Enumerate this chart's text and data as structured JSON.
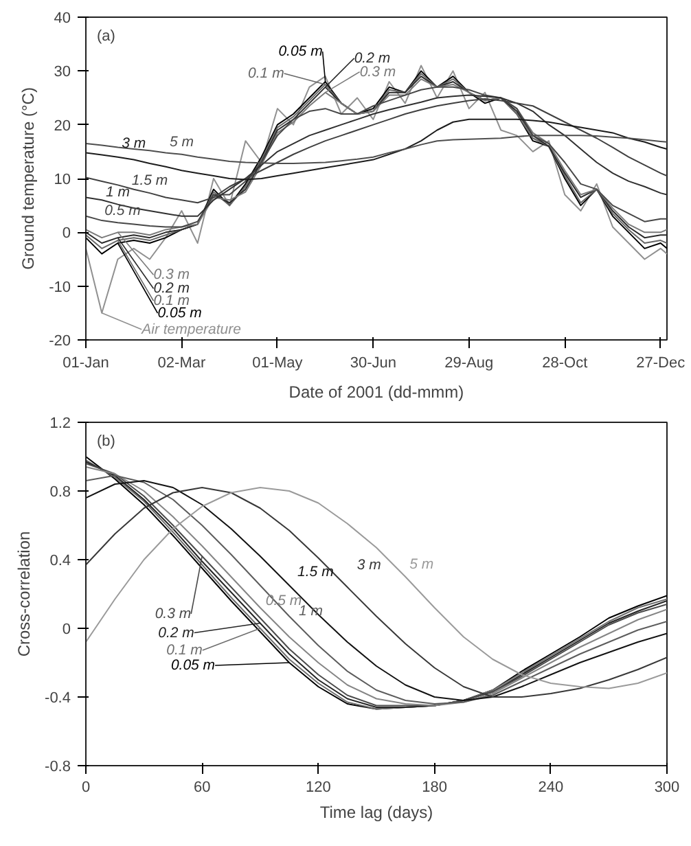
{
  "chart_data": [
    {
      "type": "line",
      "annotations": [
        "(a)"
      ],
      "xlabel": "Date of 2001 (dd-mmm)",
      "ylabel": "Ground temperature (°C)",
      "x": [
        "2001-01-01",
        "2001-01-11",
        "2001-01-21",
        "2001-01-31",
        "2001-02-10",
        "2001-02-20",
        "2001-03-02",
        "2001-03-12",
        "2001-03-22",
        "2001-04-01",
        "2001-04-11",
        "2001-04-21",
        "2001-05-01",
        "2001-05-11",
        "2001-05-21",
        "2001-05-31",
        "2001-06-10",
        "2001-06-20",
        "2001-06-30",
        "2001-07-10",
        "2001-07-20",
        "2001-07-30",
        "2001-08-09",
        "2001-08-19",
        "2001-08-29",
        "2001-09-08",
        "2001-09-18",
        "2001-09-28",
        "2001-10-08",
        "2001-10-18",
        "2001-10-28",
        "2001-11-07",
        "2001-11-17",
        "2001-11-27",
        "2001-12-07",
        "2001-12-17",
        "2001-12-27",
        "2001-12-31"
      ],
      "xlim": [
        "2001-01-01",
        "2001-12-31"
      ],
      "xticks": [
        {
          "value": "2001-01-01",
          "label": "01-Jan"
        },
        {
          "value": "2001-03-02",
          "label": "02-Mar"
        },
        {
          "value": "2001-05-01",
          "label": "01-May"
        },
        {
          "value": "2001-06-30",
          "label": "30-Jun"
        },
        {
          "value": "2001-08-29",
          "label": "29-Aug"
        },
        {
          "value": "2001-10-28",
          "label": "28-Oct"
        },
        {
          "value": "2001-12-27",
          "label": "27-Dec"
        }
      ],
      "ylim": [
        -20,
        40
      ],
      "yticks": [
        -20,
        -10,
        0,
        10,
        20,
        30,
        40
      ],
      "series": [
        {
          "name": "Air temperature",
          "color": "#909090",
          "values": [
            -3,
            -15,
            -5,
            -3,
            -5,
            -1,
            4,
            -2,
            10,
            5,
            17,
            13,
            23,
            20,
            27,
            29,
            22,
            25,
            21,
            28,
            24,
            31,
            25,
            30,
            23,
            26,
            19,
            18,
            15,
            17,
            7,
            4,
            9,
            1,
            -2,
            -5,
            -3,
            -4
          ]
        },
        {
          "name": "0.05 m",
          "color": "#000000",
          "values": [
            -1,
            -4,
            -2,
            -1.5,
            -2,
            -1,
            0.5,
            1.5,
            8,
            5,
            9,
            14,
            20,
            22,
            25,
            28,
            24,
            22,
            23,
            27,
            26,
            30,
            27,
            29,
            26,
            24,
            25,
            22,
            17,
            16,
            10,
            5,
            8,
            3,
            0,
            -3,
            -2,
            -3
          ]
        },
        {
          "name": "0.1 m",
          "color": "#666666",
          "values": [
            -0.5,
            -3,
            -1.5,
            -1,
            -1.5,
            -0.5,
            0.5,
            1.5,
            7.5,
            5,
            8.5,
            13.5,
            19.5,
            21.5,
            24.5,
            27.5,
            24,
            22,
            22.5,
            26.5,
            26,
            29.5,
            27,
            28.5,
            26,
            24.5,
            25,
            22,
            17.5,
            16,
            10.5,
            5.5,
            8,
            3.5,
            0.5,
            -2,
            -1.5,
            -2
          ]
        },
        {
          "name": "0.2 m",
          "color": "#2b2b2b",
          "values": [
            0,
            -2,
            -1,
            -0.5,
            -1,
            0,
            0.5,
            1.5,
            7,
            5.5,
            8,
            13,
            19,
            21,
            24,
            27,
            24,
            22,
            22.5,
            26,
            26,
            29,
            27,
            28,
            26,
            24.5,
            25,
            22.5,
            18,
            16,
            11,
            6.5,
            8,
            4,
            1,
            -1,
            -0.5,
            -0.5
          ]
        },
        {
          "name": "0.3 m",
          "color": "#7a7a7a",
          "values": [
            0.5,
            -1,
            0,
            0,
            -0.5,
            0.5,
            1,
            1.5,
            6.5,
            6,
            7.5,
            12.5,
            18.5,
            20.5,
            23.5,
            26,
            24,
            22,
            22.5,
            25.5,
            25.5,
            28.5,
            27,
            27.5,
            26,
            24.5,
            25,
            23,
            18.5,
            16.5,
            11.5,
            7,
            8,
            4.5,
            1.5,
            0,
            0,
            0.5
          ]
        },
        {
          "name": "0.5 m",
          "color": "#474747",
          "values": [
            3,
            2.2,
            1.8,
            1.5,
            1.2,
            1,
            1,
            2,
            7,
            7,
            9.5,
            13,
            18,
            21,
            22.5,
            23,
            22,
            22,
            23.5,
            24.5,
            25.5,
            26.5,
            27,
            27,
            26.5,
            25.5,
            25,
            23,
            18,
            16.5,
            13,
            9,
            8,
            5,
            3.5,
            2,
            2.5,
            2.5
          ]
        },
        {
          "name": "1 m",
          "color": "#303030",
          "values": [
            6.5,
            6,
            5.2,
            4.5,
            4,
            3.5,
            3,
            3,
            6,
            8,
            10,
            12.5,
            15,
            16.5,
            18,
            19,
            20,
            21,
            22,
            22.8,
            23.5,
            24.2,
            25,
            25.3,
            25.5,
            25.3,
            25,
            24,
            22.5,
            20,
            18,
            15.5,
            13,
            11,
            9.5,
            8.5,
            7.3,
            7
          ]
        },
        {
          "name": "1.5 m",
          "color": "#404040",
          "values": [
            10.2,
            9.5,
            8.8,
            8,
            7.3,
            6.5,
            6,
            5.5,
            6.5,
            8.5,
            10,
            11.5,
            13,
            14.5,
            15.8,
            17,
            18,
            19,
            20,
            21,
            22,
            22.8,
            23.5,
            24,
            24.5,
            24.8,
            24.5,
            24,
            23.5,
            22,
            20.5,
            19,
            17.5,
            15.8,
            14,
            12.5,
            11,
            10.5
          ]
        },
        {
          "name": "3 m",
          "color": "#1c1c1c",
          "values": [
            14.8,
            14.4,
            14,
            13.5,
            12.8,
            12.2,
            11.5,
            11,
            10.5,
            10,
            9.8,
            10,
            10.5,
            11,
            11.5,
            12,
            12.5,
            13,
            13.5,
            14.5,
            15.5,
            17,
            19,
            20.5,
            21,
            21,
            21,
            21,
            20.8,
            20.5,
            20,
            19.5,
            19,
            18.5,
            17.5,
            16.8,
            15.8,
            15.5
          ]
        },
        {
          "name": "5 m",
          "color": "#4e4e4e",
          "values": [
            16.5,
            16.2,
            15.8,
            15.5,
            15.2,
            14.8,
            14.5,
            14,
            13.6,
            13.2,
            13,
            12.9,
            12.8,
            12.8,
            12.9,
            13,
            13.3,
            13.6,
            14,
            14.8,
            15.5,
            16.3,
            17,
            17.2,
            17.3,
            17.4,
            17.5,
            17.8,
            18,
            18,
            18,
            18,
            17.9,
            17.7,
            17.5,
            17.2,
            16.9,
            16.8
          ]
        }
      ]
    },
    {
      "type": "line",
      "annotations": [
        "(b)"
      ],
      "xlabel": "Time lag (days)",
      "ylabel": "Cross-correlation",
      "x": [
        0,
        15,
        30,
        45,
        60,
        75,
        90,
        105,
        120,
        135,
        150,
        165,
        180,
        195,
        210,
        225,
        240,
        255,
        270,
        285,
        300
      ],
      "xlim": [
        0,
        300
      ],
      "xticks": [
        0,
        60,
        120,
        180,
        240,
        300
      ],
      "ylim": [
        -0.8,
        1.2
      ],
      "yticks": [
        -0.8,
        -0.4,
        0,
        0.4,
        0.8,
        1.2
      ],
      "series": [
        {
          "name": "0.05 m",
          "color": "#000000",
          "values": [
            1.0,
            0.87,
            0.72,
            0.54,
            0.35,
            0.16,
            -0.02,
            -0.2,
            -0.34,
            -0.44,
            -0.47,
            -0.46,
            -0.45,
            -0.42,
            -0.36,
            -0.25,
            -0.15,
            -0.05,
            0.06,
            0.13,
            0.19
          ]
        },
        {
          "name": "0.1 m",
          "color": "#6e6e6e",
          "values": [
            0.98,
            0.88,
            0.74,
            0.56,
            0.37,
            0.18,
            0,
            -0.18,
            -0.32,
            -0.43,
            -0.47,
            -0.46,
            -0.45,
            -0.42,
            -0.36,
            -0.26,
            -0.16,
            -0.06,
            0.04,
            0.12,
            0.17
          ]
        },
        {
          "name": "0.2 m",
          "color": "#242424",
          "values": [
            0.97,
            0.89,
            0.75,
            0.58,
            0.39,
            0.21,
            0.03,
            -0.15,
            -0.3,
            -0.41,
            -0.46,
            -0.46,
            -0.45,
            -0.42,
            -0.37,
            -0.27,
            -0.17,
            -0.07,
            0.03,
            0.1,
            0.16
          ]
        },
        {
          "name": "0.3 m",
          "color": "#4a4a4a",
          "values": [
            0.96,
            0.9,
            0.77,
            0.6,
            0.42,
            0.24,
            0.06,
            -0.12,
            -0.27,
            -0.39,
            -0.45,
            -0.45,
            -0.45,
            -0.42,
            -0.37,
            -0.28,
            -0.18,
            -0.08,
            0.02,
            0.09,
            0.14
          ]
        },
        {
          "name": "0.5 m",
          "color": "#858585",
          "values": [
            0.94,
            0.9,
            0.8,
            0.65,
            0.48,
            0.3,
            0.12,
            -0.05,
            -0.2,
            -0.33,
            -0.41,
            -0.44,
            -0.45,
            -0.43,
            -0.38,
            -0.29,
            -0.2,
            -0.11,
            -0.03,
            0.05,
            0.11
          ]
        },
        {
          "name": "1 m",
          "color": "#5c5c5c",
          "values": [
            0.86,
            0.89,
            0.85,
            0.75,
            0.6,
            0.43,
            0.25,
            0.07,
            -0.1,
            -0.25,
            -0.36,
            -0.42,
            -0.44,
            -0.43,
            -0.39,
            -0.31,
            -0.23,
            -0.15,
            -0.08,
            -0.01,
            0.04
          ]
        },
        {
          "name": "1.5 m",
          "color": "#121212",
          "values": [
            0.76,
            0.84,
            0.86,
            0.82,
            0.72,
            0.58,
            0.42,
            0.25,
            0.08,
            -0.08,
            -0.22,
            -0.33,
            -0.4,
            -0.42,
            -0.4,
            -0.34,
            -0.27,
            -0.2,
            -0.14,
            -0.08,
            -0.03
          ]
        },
        {
          "name": "3 m",
          "color": "#383838",
          "values": [
            0.37,
            0.55,
            0.7,
            0.79,
            0.82,
            0.79,
            0.7,
            0.57,
            0.41,
            0.24,
            0.07,
            -0.09,
            -0.23,
            -0.34,
            -0.4,
            -0.4,
            -0.38,
            -0.35,
            -0.3,
            -0.24,
            -0.17
          ]
        },
        {
          "name": "5 m",
          "color": "#9a9a9a",
          "values": [
            -0.08,
            0.17,
            0.4,
            0.58,
            0.71,
            0.79,
            0.82,
            0.8,
            0.73,
            0.61,
            0.47,
            0.3,
            0.12,
            -0.05,
            -0.18,
            -0.27,
            -0.32,
            -0.34,
            -0.35,
            -0.32,
            -0.26
          ]
        }
      ]
    }
  ]
}
